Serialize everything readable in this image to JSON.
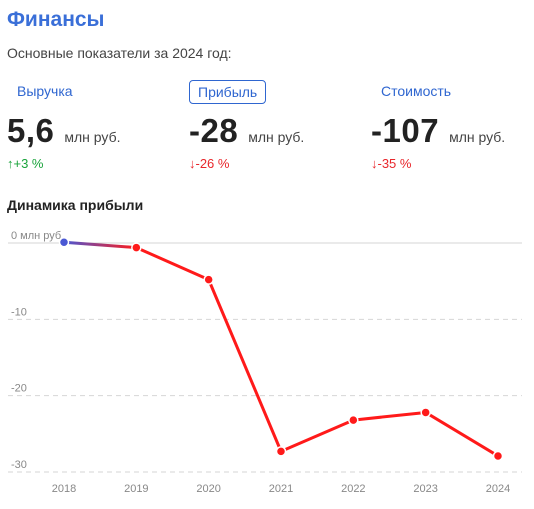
{
  "header": {
    "title": "Финансы",
    "subtitle": "Основные показатели за 2024 год:"
  },
  "tabs": [
    {
      "label": "Выручка",
      "active": false
    },
    {
      "label": "Прибыль",
      "active": true
    },
    {
      "label": "Стоимость",
      "active": false
    }
  ],
  "metrics": [
    {
      "value": "5,6",
      "unit": "млн руб.",
      "change": "↑+3 %",
      "direction": "up"
    },
    {
      "value": "-28",
      "unit": "млн руб.",
      "change": "↓-26 %",
      "direction": "down"
    },
    {
      "value": "-107",
      "unit": "млн руб.",
      "change": "↓-35 %",
      "direction": "down"
    }
  ],
  "section_title": "Динамика прибыли",
  "colors": {
    "accent": "#3a6fd8",
    "positive": "#18a33a",
    "negative": "#e8262b",
    "line_positive": "#4a58d4",
    "line_negative": "#ff1a1a"
  },
  "chart_data": {
    "type": "line",
    "title": "Динамика прибыли",
    "x": [
      "2018",
      "2019",
      "2020",
      "2021",
      "2022",
      "2023",
      "2024"
    ],
    "series": [
      {
        "values": [
          0.1,
          -0.6,
          -4.8,
          -27.3,
          -23.2,
          -22.2,
          -27.9
        ]
      }
    ],
    "y_ticks": [
      {
        "value": 0,
        "label": "0 млн руб."
      },
      {
        "value": -10,
        "label": "-10"
      },
      {
        "value": -20,
        "label": "-20"
      },
      {
        "value": -30,
        "label": "-30"
      }
    ],
    "ylim": [
      -30,
      0
    ],
    "grid": true,
    "legend": "none"
  }
}
